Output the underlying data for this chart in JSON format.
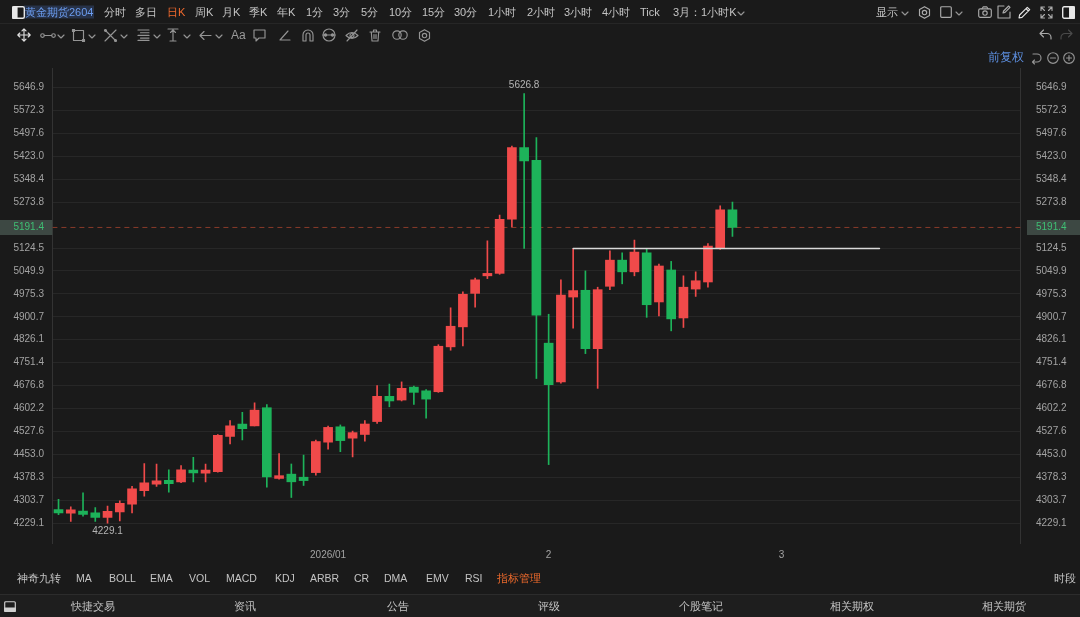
{
  "chart_data": {
    "type": "candlestick",
    "title": "黄金期货2604",
    "categories": [
      null,
      null,
      null,
      null,
      null,
      null,
      null,
      null,
      null,
      null,
      null,
      null,
      null,
      null,
      null,
      null,
      null,
      null,
      null,
      null,
      null,
      null,
      "2026/01",
      null,
      null,
      null,
      null,
      null,
      null,
      null,
      null,
      null,
      null,
      null,
      null,
      null,
      null,
      null,
      null,
      null,
      "2",
      null,
      null,
      null,
      null,
      null,
      null,
      null,
      null,
      null,
      null,
      null,
      null,
      null,
      null,
      null,
      null,
      null,
      null,
      "3",
      null,
      null,
      null,
      null,
      null,
      null,
      null,
      null,
      null,
      null,
      null,
      null,
      null,
      null,
      null,
      null,
      null,
      null,
      null
    ],
    "ohlc": [
      [
        4274,
        4307,
        4257,
        4263
      ],
      [
        4262,
        4283,
        4235,
        4273
      ],
      [
        4269,
        4328,
        4252,
        4258
      ],
      [
        4263,
        4280,
        4235,
        4248
      ],
      [
        4248,
        4285,
        4229.1,
        4268
      ],
      [
        4266,
        4302,
        4237,
        4294
      ],
      [
        4291,
        4349,
        4263,
        4341
      ],
      [
        4335,
        4423,
        4317,
        4361
      ],
      [
        4356,
        4422,
        4349,
        4367
      ],
      [
        4369,
        4403,
        4330,
        4358
      ],
      [
        4364,
        4417,
        4361,
        4403
      ],
      [
        4402,
        4444,
        4364,
        4393
      ],
      [
        4392,
        4422,
        4364,
        4402
      ],
      [
        4397,
        4518,
        4395,
        4515
      ],
      [
        4512,
        4563,
        4487,
        4546
      ],
      [
        4552,
        4590,
        4500,
        4537
      ],
      [
        4546,
        4621,
        4546,
        4597
      ],
      [
        4605,
        4615,
        4347,
        4380
      ],
      [
        4375,
        4456,
        4373,
        4384
      ],
      [
        4389,
        4422,
        4313,
        4364
      ],
      [
        4379,
        4451,
        4352,
        4368
      ],
      [
        4394,
        4500,
        4386,
        4495
      ],
      [
        4493,
        4545,
        4470,
        4541
      ],
      [
        4543,
        4549,
        4462,
        4498
      ],
      [
        4506,
        4529,
        4445,
        4524
      ],
      [
        4518,
        4563,
        4496,
        4552
      ],
      [
        4560,
        4677,
        4554,
        4642
      ],
      [
        4642,
        4682,
        4608,
        4627
      ],
      [
        4630,
        4689,
        4627,
        4668
      ],
      [
        4672,
        4675,
        4616,
        4655
      ],
      [
        4660,
        4664,
        4571,
        4633
      ],
      [
        4657,
        4810,
        4655,
        4805
      ],
      [
        4803,
        4930,
        4792,
        4870
      ],
      [
        4868,
        4982,
        4806,
        4974
      ],
      [
        4977,
        5027,
        4932,
        5021
      ],
      [
        5034,
        5148,
        5025,
        5042
      ],
      [
        5042,
        5232,
        5039,
        5218
      ],
      [
        5218,
        5456,
        5193,
        5451
      ],
      [
        5451,
        5626.8,
        5123,
        5408
      ],
      [
        5410,
        5484,
        4700,
        4906
      ],
      [
        4815,
        4909,
        4420,
        4680
      ],
      [
        4689,
        5021,
        4685,
        4971
      ],
      [
        4965,
        5123,
        4864,
        4986
      ],
      [
        4987,
        5050,
        4781,
        4797
      ],
      [
        4797,
        4997,
        4668,
        4989
      ],
      [
        5000,
        5115,
        4989,
        5085
      ],
      [
        5085,
        5109,
        5008,
        5047
      ],
      [
        5047,
        5150,
        5034,
        5111
      ],
      [
        5109,
        5120,
        4899,
        4940
      ],
      [
        4949,
        5072,
        4904,
        5066
      ],
      [
        5053,
        5081,
        4855,
        4894
      ],
      [
        4897,
        5034,
        4866,
        4997
      ],
      [
        4991,
        5047,
        4967,
        5018
      ],
      [
        5014,
        5139,
        4997,
        5131
      ],
      [
        5123,
        5262,
        5120,
        5249
      ],
      [
        5249,
        5274,
        5162,
        5191.4
      ],
      null,
      null,
      null,
      null,
      null,
      null,
      null,
      null,
      null,
      null,
      null,
      null,
      null,
      null,
      null,
      null,
      null,
      null,
      null,
      null,
      null,
      null,
      null
    ],
    "colors": [
      "#1db35a",
      "#f04a4a",
      "#1db35a",
      "#1db35a",
      "#f04a4a",
      "#f04a4a",
      "#f04a4a",
      "#f04a4a",
      "#f04a4a",
      "#1db35a",
      "#f04a4a",
      "#1db35a",
      "#f04a4a",
      "#f04a4a",
      "#f04a4a",
      "#1db35a",
      "#f04a4a",
      "#1db35a",
      "#f04a4a",
      "#1db35a",
      "#1db35a",
      "#f04a4a",
      "#f04a4a",
      "#1db35a",
      "#f04a4a",
      "#f04a4a",
      "#f04a4a",
      "#1db35a",
      "#f04a4a",
      "#1db35a",
      "#1db35a",
      "#f04a4a",
      "#f04a4a",
      "#f04a4a",
      "#f04a4a",
      "#f04a4a",
      "#f04a4a",
      "#f04a4a",
      "#1db35a",
      "#1db35a",
      "#1db35a",
      "#f04a4a",
      "#f04a4a",
      "#1db35a",
      "#f04a4a",
      "#f04a4a",
      "#1db35a",
      "#f04a4a",
      "#1db35a",
      "#f04a4a",
      "#1db35a",
      "#f04a4a",
      "#f04a4a",
      "#f04a4a",
      "#f04a4a",
      "#1db35a",
      null,
      null,
      null,
      null,
      null,
      null,
      null,
      null,
      null,
      null,
      null,
      null,
      null,
      null,
      null,
      null,
      null,
      null,
      null,
      null,
      null,
      null,
      null
    ],
    "series": [
      {
        "type": "line",
        "color": "#d9d9d9",
        "values": [
          null,
          null,
          null,
          null,
          null,
          null,
          null,
          null,
          null,
          null,
          null,
          null,
          null,
          null,
          null,
          null,
          null,
          null,
          null,
          null,
          null,
          null,
          null,
          null,
          null,
          null,
          null,
          null,
          null,
          null,
          null,
          null,
          null,
          null,
          null,
          null,
          null,
          null,
          null,
          null,
          null,
          null,
          5123,
          5123,
          5123,
          5123,
          5123,
          5123,
          5123,
          5123,
          5123,
          5123,
          5123,
          5123,
          5123,
          5123,
          5123,
          5123,
          5123,
          5123,
          5123,
          5123,
          5123,
          5123,
          5123,
          5123,
          5123,
          5123,
          null,
          null,
          null,
          null,
          null,
          null,
          null,
          null,
          null,
          null,
          null
        ]
      }
    ],
    "ylim": [
      4165,
      5710
    ],
    "yticks": [
      4229.1,
      4303.7,
      4378.3,
      {
        "value": 4453,
        "label": "4453.0"
      },
      4527.6,
      4602.2,
      4676.8,
      4751.4,
      4826.1,
      4900.7,
      4975.3,
      5049.9,
      5124.5,
      5273.8,
      5348.4,
      {
        "value": 5423,
        "label": "5423.0"
      },
      5497.6,
      5572.3,
      5646.9
    ],
    "y2lim": [
      4165,
      5710
    ],
    "y2ticks": [
      4229.1,
      4303.7,
      4378.3,
      {
        "value": 4453,
        "label": "4453.0"
      },
      4527.6,
      4602.2,
      4676.8,
      4751.4,
      4826.1,
      4900.7,
      4975.3,
      5049.9,
      5124.5,
      5273.8,
      5348.4,
      {
        "value": 5423,
        "label": "5423.0"
      },
      5497.6,
      5572.3,
      5646.9
    ],
    "grid": "y",
    "ref_lines": [
      {
        "axis": "y",
        "value": 5191.4,
        "label": "5191.4",
        "color": "#8a3b2a",
        "line_style": "dashed"
      }
    ],
    "annotations": [
      "分时",
      "多日",
      "日K",
      "周K",
      "月K",
      "季K",
      "年K",
      "1分",
      "3分",
      "5分",
      "10分",
      "15分",
      "30分",
      "1小时",
      "2小时",
      "3小时",
      "4小时",
      "Tick",
      "3月：1小时K",
      "显示",
      "Aa",
      "前复权",
      "神奇九转",
      "MA",
      "BOLL",
      "EMA",
      "VOL",
      "MACD",
      "KDJ",
      "ARBR",
      "CR",
      "DMA",
      "EMV",
      "RSI",
      "指标管理",
      "时段",
      "快捷交易",
      "资讯",
      "公告",
      "评级",
      "个股笔记",
      "相关期权",
      "相关期货",
      {
        "text": "5626.8",
        "y": 5626.8
      },
      {
        "text": "4229.1",
        "y": 4229.1
      }
    ]
  }
}
